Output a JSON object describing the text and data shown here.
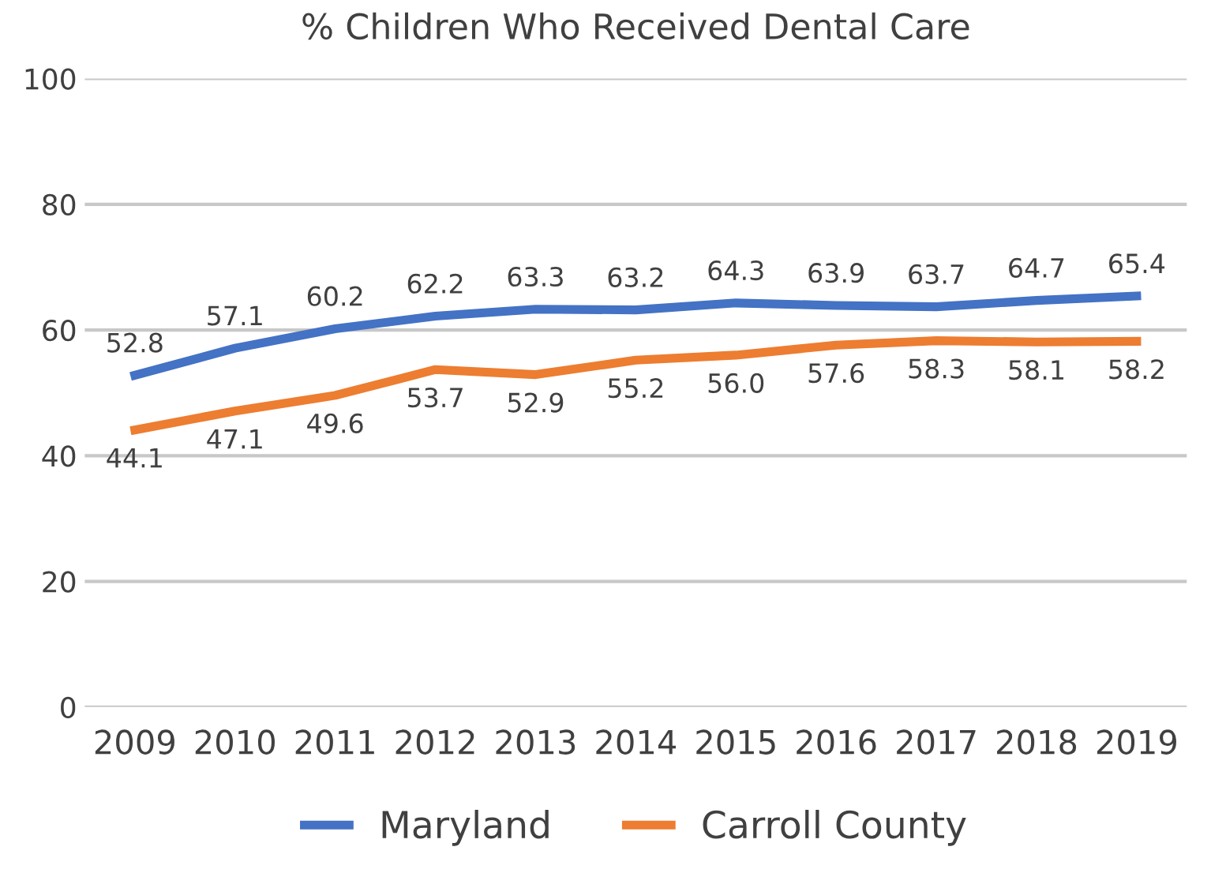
{
  "chart_data": {
    "type": "line",
    "title": "% Children Who Received Dental Care",
    "categories": [
      "2009",
      "2010",
      "2011",
      "2012",
      "2013",
      "2014",
      "2015",
      "2016",
      "2017",
      "2018",
      "2019"
    ],
    "series": [
      {
        "name": "Maryland",
        "color": "#4472c4",
        "values": [
          52.8,
          57.1,
          60.2,
          62.2,
          63.3,
          63.2,
          64.3,
          63.9,
          63.7,
          64.7,
          65.4
        ],
        "value_labels": [
          "52.8",
          "57.1",
          "60.2",
          "62.2",
          "63.3",
          "63.2",
          "64.3",
          "63.9",
          "63.7",
          "64.7",
          "65.4"
        ]
      },
      {
        "name": "Carroll County",
        "color": "#ed7d31",
        "values": [
          44.1,
          47.1,
          49.6,
          53.7,
          52.9,
          55.2,
          56.0,
          57.6,
          58.3,
          58.1,
          58.2
        ],
        "value_labels": [
          "44.1",
          "47.1",
          "49.6",
          "53.7",
          "52.9",
          "55.2",
          "56.0",
          "57.6",
          "58.3",
          "58.1",
          "58.2"
        ]
      }
    ],
    "ylim": [
      0,
      100
    ],
    "yticks": [
      0,
      20,
      40,
      60,
      80,
      100
    ],
    "grid": "y",
    "legend": "bottom",
    "marker": "none",
    "line_style": "solid"
  }
}
